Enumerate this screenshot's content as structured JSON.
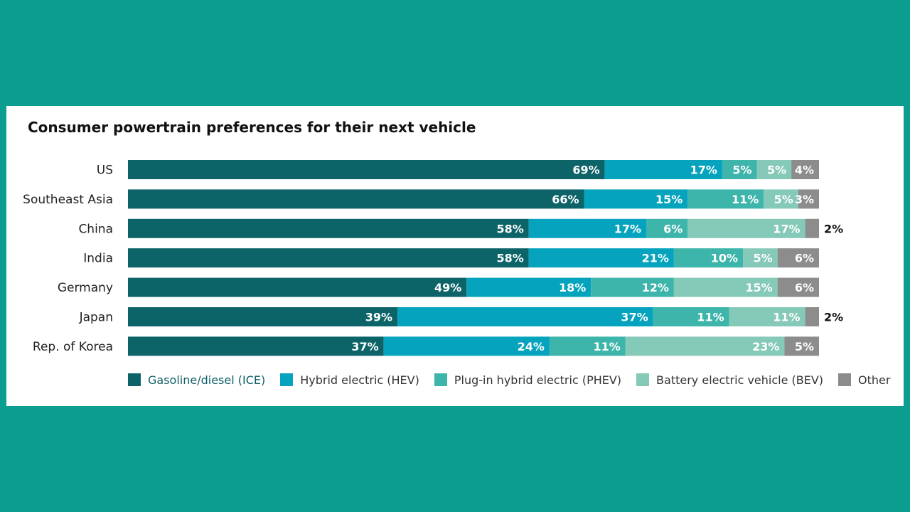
{
  "chart_data": {
    "type": "bar",
    "orientation": "horizontal",
    "stacked": true,
    "title": "Consumer powertrain preferences for their next vehicle",
    "categories": [
      "US",
      "Southeast Asia",
      "China",
      "India",
      "Germany",
      "Japan",
      "Rep. of Korea"
    ],
    "series": [
      {
        "name": "Gasoline/diesel (ICE)",
        "color": "#0d6468",
        "values": [
          69,
          66,
          58,
          58,
          49,
          39,
          37
        ]
      },
      {
        "name": "Hybrid electric (HEV)",
        "color": "#05a3bd",
        "values": [
          17,
          15,
          17,
          21,
          18,
          37,
          24
        ]
      },
      {
        "name": "Plug-in hybrid electric (PHEV)",
        "color": "#3db5aa",
        "values": [
          5,
          11,
          6,
          10,
          12,
          11,
          11
        ]
      },
      {
        "name": "Battery electric vehicle (BEV)",
        "color": "#85c9b8",
        "values": [
          5,
          5,
          17,
          5,
          15,
          11,
          23
        ]
      },
      {
        "name": "Other",
        "color": "#8c8c8c",
        "values": [
          4,
          3,
          2,
          6,
          6,
          2,
          5
        ]
      }
    ],
    "value_suffix": "%",
    "xlim": [
      0,
      100
    ],
    "grid": false,
    "legend_position": "bottom"
  }
}
